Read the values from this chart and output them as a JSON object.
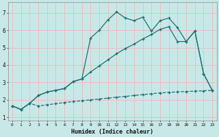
{
  "xlabel": "Humidex (Indice chaleur)",
  "bg_color": "#c8e8e8",
  "grid_color": "#f0b8b8",
  "line_color": "#1a7070",
  "xlim": [
    -0.5,
    23.5
  ],
  "ylim": [
    0.8,
    7.6
  ],
  "xticks": [
    0,
    1,
    2,
    3,
    4,
    5,
    6,
    7,
    8,
    9,
    10,
    11,
    12,
    13,
    14,
    15,
    16,
    17,
    18,
    19,
    20,
    21,
    22,
    23
  ],
  "yticks": [
    1,
    2,
    3,
    4,
    5,
    6,
    7
  ],
  "series1_x": [
    0,
    1,
    2,
    3,
    4,
    5,
    6,
    7,
    8,
    9,
    10,
    11,
    12,
    13,
    14,
    15,
    16,
    17,
    18,
    19,
    20,
    21,
    22,
    23
  ],
  "series1_y": [
    1.65,
    1.45,
    1.8,
    1.65,
    1.72,
    1.78,
    1.85,
    1.9,
    1.95,
    2.0,
    2.05,
    2.1,
    2.15,
    2.2,
    2.25,
    2.3,
    2.35,
    2.4,
    2.43,
    2.46,
    2.48,
    2.5,
    2.52,
    2.55
  ],
  "series2_x": [
    0,
    1,
    2,
    3,
    4,
    5,
    6,
    7,
    8,
    9,
    10,
    11,
    12,
    13,
    14,
    15,
    16,
    17,
    18,
    19,
    20,
    21,
    22,
    23
  ],
  "series2_y": [
    1.65,
    1.45,
    1.8,
    2.25,
    2.45,
    2.55,
    2.65,
    3.05,
    3.2,
    5.55,
    6.0,
    6.6,
    7.05,
    6.7,
    6.55,
    6.75,
    5.95,
    6.55,
    6.7,
    6.15,
    5.35,
    5.95,
    3.5,
    2.55
  ],
  "series3_x": [
    0,
    1,
    2,
    3,
    4,
    5,
    6,
    7,
    8,
    9,
    10,
    11,
    12,
    13,
    14,
    15,
    16,
    17,
    18,
    19,
    20,
    21,
    22,
    23
  ],
  "series3_y": [
    1.65,
    1.45,
    1.8,
    2.25,
    2.45,
    2.55,
    2.65,
    3.05,
    3.2,
    3.6,
    3.95,
    4.3,
    4.65,
    4.95,
    5.2,
    5.5,
    5.75,
    6.05,
    6.2,
    5.35,
    5.35,
    5.95,
    3.5,
    2.55
  ]
}
